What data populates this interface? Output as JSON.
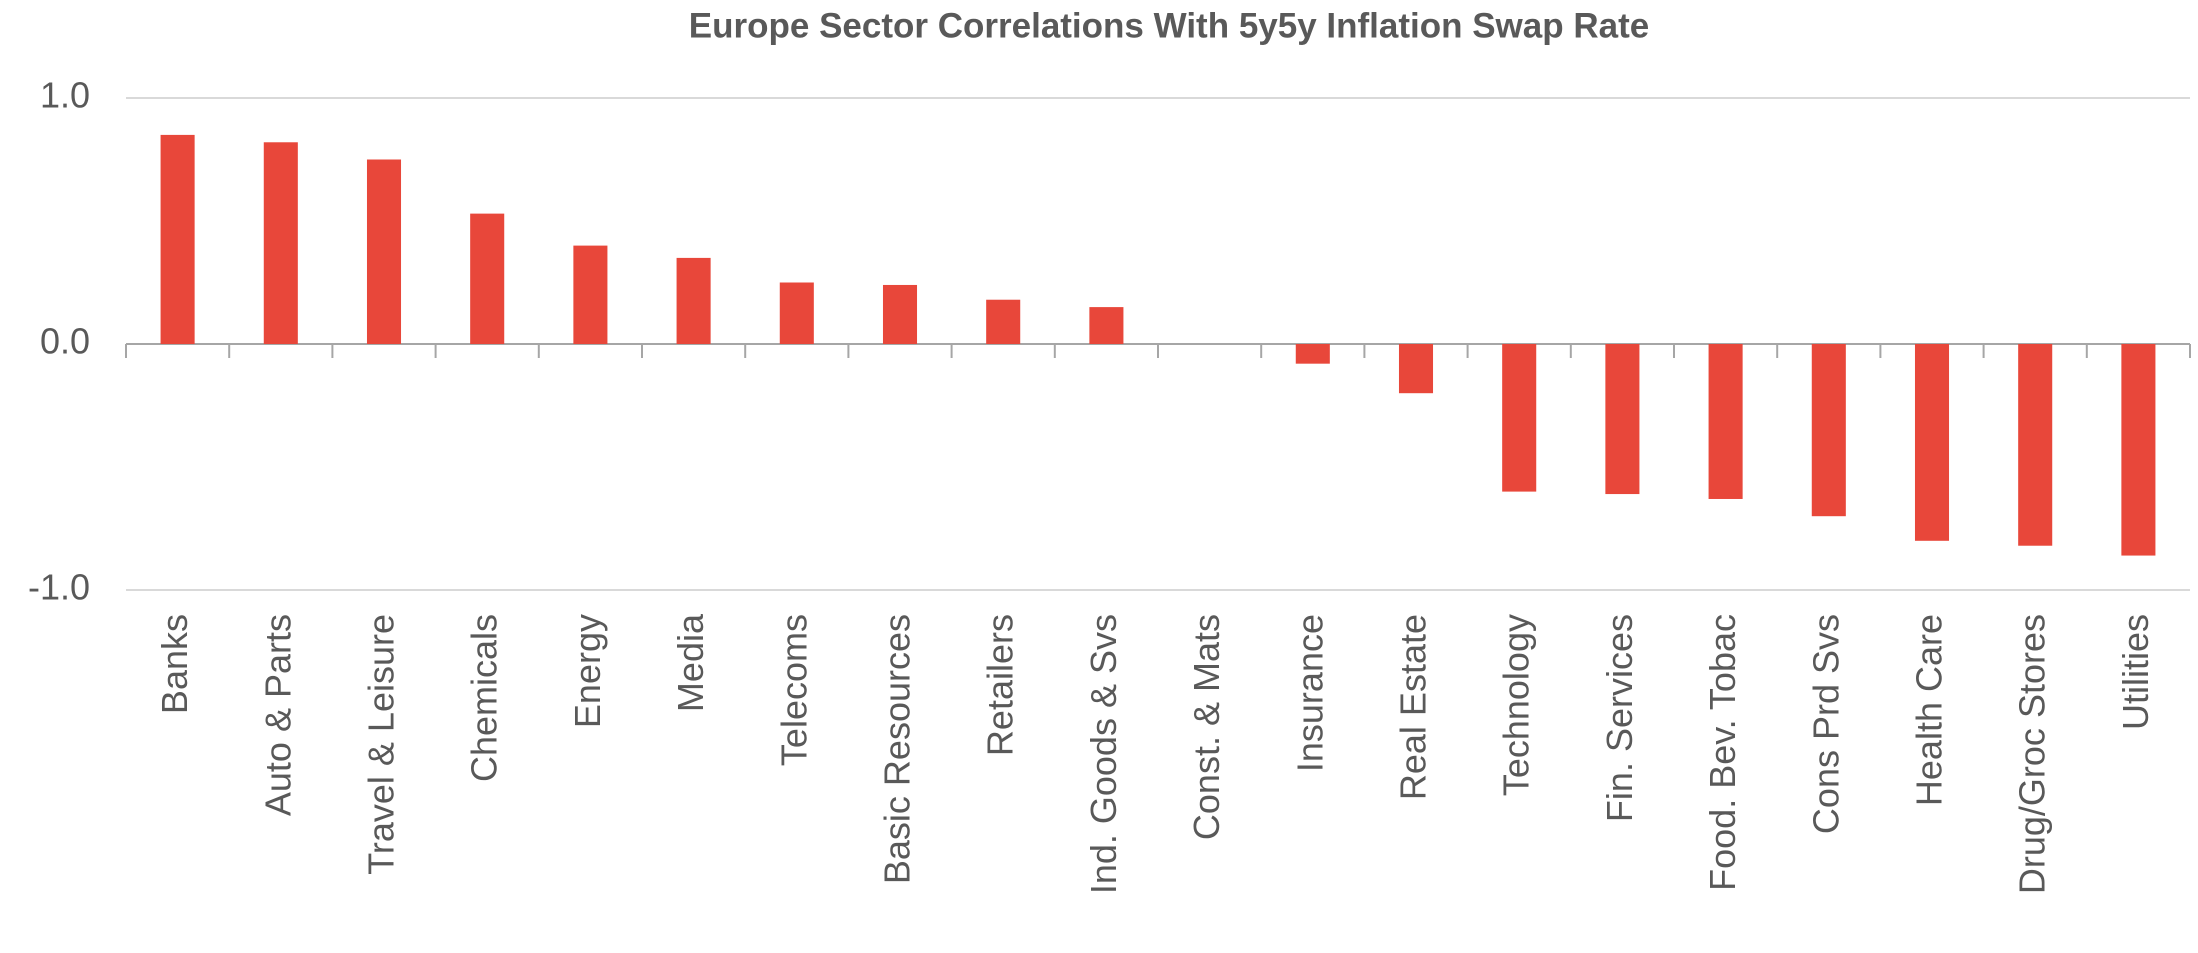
{
  "chart_data": {
    "type": "bar",
    "title": "Europe Sector Correlations With 5y5y Inflation Swap Rate",
    "categories": [
      "Banks",
      "Auto & Parts",
      "Travel & Leisure",
      "Chemicals",
      "Energy",
      "Media",
      "Telecoms",
      "Basic Resources",
      "Retailers",
      "Ind. Goods & Svs",
      "Const. & Mats",
      "Insurance",
      "Real Estate",
      "Technology",
      "Fin. Services",
      "Food. Bev. Tobac",
      "Cons Prd Svs",
      "Health Care",
      "Drug/Groc Stores",
      "Utilities"
    ],
    "values": [
      0.85,
      0.82,
      0.75,
      0.53,
      0.4,
      0.35,
      0.25,
      0.24,
      0.18,
      0.15,
      0.0,
      -0.08,
      -0.2,
      -0.6,
      -0.61,
      -0.63,
      -0.7,
      -0.8,
      -0.82,
      -0.86
    ],
    "color": "#e8473a",
    "ylim": [
      -1,
      1
    ],
    "yticks": [
      {
        "value": -1,
        "label": "-1.0"
      },
      {
        "value": 0,
        "label": "0.0"
      },
      {
        "value": 1,
        "label": "1.0"
      }
    ],
    "grid": true
  }
}
